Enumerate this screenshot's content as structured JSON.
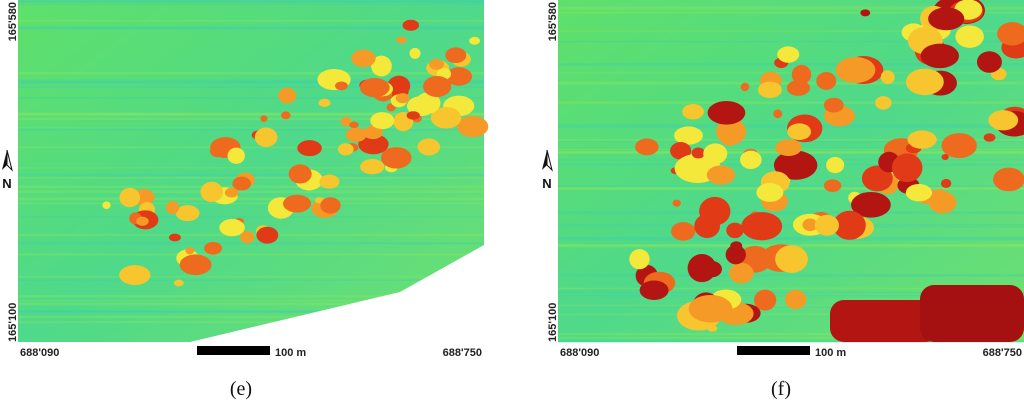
{
  "panels": [
    {
      "caption": "(e)",
      "y_top": "165'580",
      "y_bottom": "165'100",
      "x_left": "688'090",
      "x_right": "688'750",
      "scale": "100 m",
      "north": "N"
    },
    {
      "caption": "(f)",
      "y_top": "165'580",
      "y_bottom": "165'100",
      "x_left": "688'090",
      "x_right": "688'750",
      "scale": "100 m",
      "north": "N"
    }
  ]
}
